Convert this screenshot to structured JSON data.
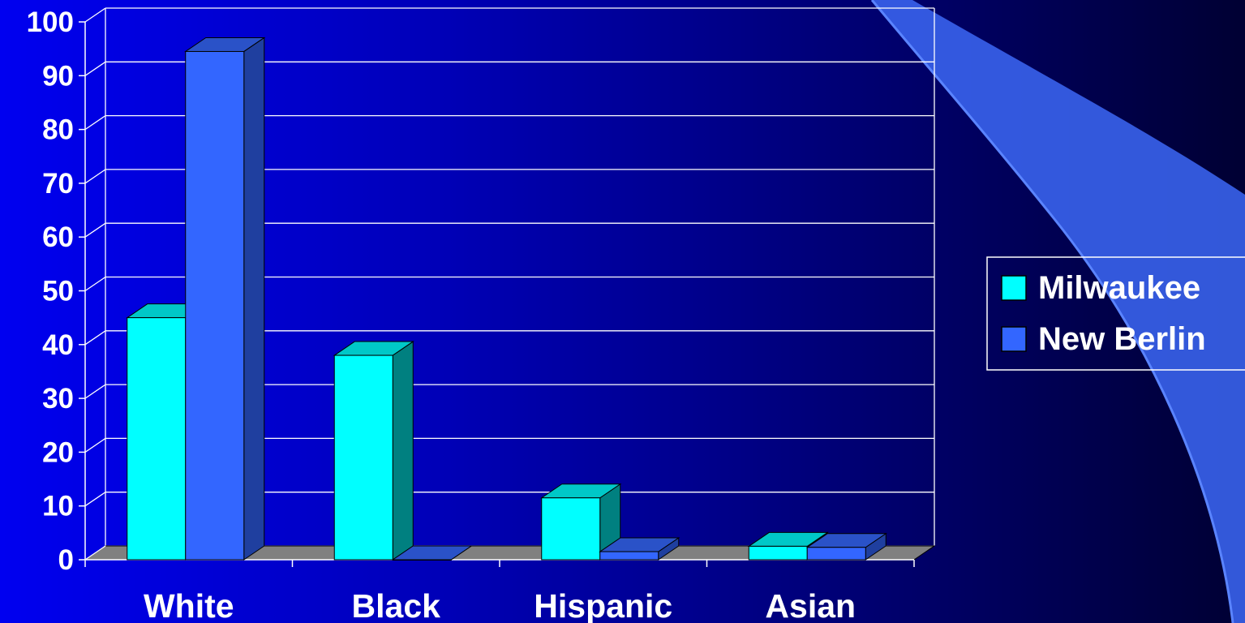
{
  "chart_data": {
    "type": "bar",
    "style": "3d-clustered-column",
    "categories": [
      "White",
      "Black",
      "Hispanic",
      "Asian"
    ],
    "series": [
      {
        "name": "Milwaukee",
        "values": [
          45,
          38,
          11.5,
          2.5
        ],
        "color": "#00ffff"
      },
      {
        "name": "New Berlin",
        "values": [
          94.5,
          0,
          1.5,
          2.3
        ],
        "color": "#3366ff"
      }
    ],
    "ylim": [
      0,
      100
    ],
    "yticks": [
      0,
      10,
      20,
      30,
      40,
      50,
      60,
      70,
      80,
      90,
      100
    ],
    "grid": true,
    "legend_position": "right",
    "title": "",
    "xlabel": "",
    "ylabel": ""
  },
  "colors": {
    "background_left": "#0000f0",
    "background_right": "#000033",
    "gridline": "#ffffff",
    "floor": "#808080",
    "decoration": "#3a64f0"
  }
}
